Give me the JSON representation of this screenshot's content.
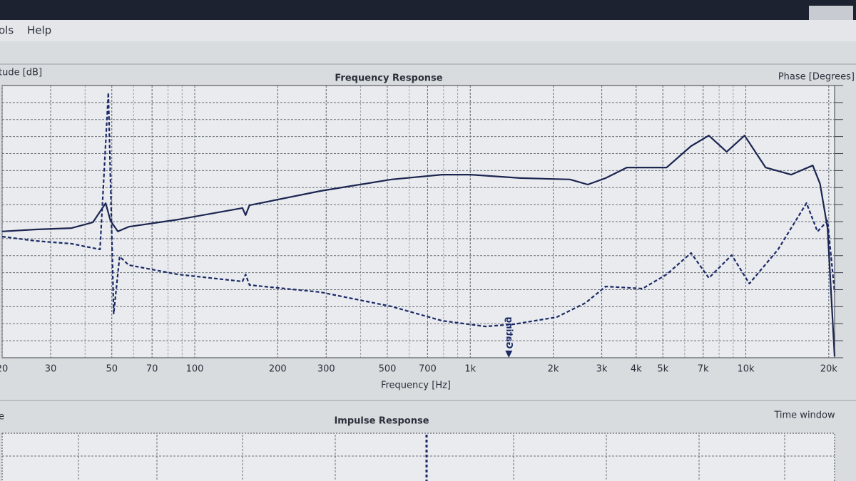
{
  "menu": [
    "ols",
    "Help"
  ],
  "chart_data": {
    "type": "line",
    "title": "Frequency Response",
    "ylabel": "tude [dB]",
    "y2label": "Phase [Degrees]",
    "xlabel": "Frequency [Hz]",
    "xscale": "log",
    "grid": true,
    "xlim": [
      20,
      21000
    ],
    "xticks": [
      20,
      30,
      50,
      70,
      100,
      200,
      300,
      500,
      700,
      {
        "value": 1000,
        "label": "1k"
      },
      {
        "value": 2000,
        "label": "2k"
      },
      {
        "value": 3000,
        "label": "3k"
      },
      {
        "value": 4000,
        "label": "4k"
      },
      {
        "value": 5000,
        "label": "5k"
      },
      {
        "value": 7000,
        "label": "7k"
      },
      {
        "value": 10000,
        "label": "10k"
      },
      {
        "value": 20000,
        "label": "20k"
      }
    ],
    "ylim": [
      -70,
      10
    ],
    "y2lim": [
      -180,
      180
    ],
    "series": [
      {
        "color": "#1b2550",
        "x": [
          20,
          26.5,
          35.7,
          42.7,
          47.5,
          49.5,
          52.6,
          57.6,
          87,
          149,
          153,
          158,
          286,
          518,
          790,
          1003,
          1520,
          2300,
          2670,
          3100,
          3700,
          5160,
          6330,
          7340,
          8520,
          9900,
          11800,
          14600,
          17500,
          18600,
          19800,
          21000
        ],
        "values": [
          -32.9,
          -32.3,
          -31.9,
          -30.2,
          -24.6,
          -29.8,
          -32.9,
          -31.5,
          -29.4,
          -26.0,
          -28.1,
          -25.2,
          -21.0,
          -17.6,
          -16.2,
          -16.2,
          -17.2,
          -17.6,
          -19.1,
          -17.2,
          -14.1,
          -14.1,
          -7.8,
          -4.7,
          -9.5,
          -4.7,
          -14.1,
          -16.2,
          -13.5,
          -18.9,
          -31.9,
          -69.6
        ]
      },
      {
        "color": "#1b2a66",
        "dash": true,
        "axis": "y2",
        "x": [
          20,
          26.5,
          35.7,
          45.3,
          48.6,
          50.8,
          53.4,
          57.6,
          87,
          149,
          153,
          158,
          286,
          518,
          790,
          1135,
          1440,
          2060,
          2620,
          3100,
          4220,
          5160,
          6330,
          7340,
          8890,
          10300,
          13100,
          16600,
          18200,
          19800,
          21000
        ],
        "values": [
          -19.8,
          -25.5,
          -29.2,
          -36.8,
          170.6,
          -121.6,
          -46.2,
          -57.5,
          -69.8,
          -79.2,
          -69.8,
          -83.9,
          -93.3,
          -112.2,
          -131.1,
          -138.6,
          -135.7,
          -126.3,
          -107.5,
          -85.8,
          -88.6,
          -69.8,
          -41.5,
          -74.5,
          -44.3,
          -82.0,
          -36.8,
          24.5,
          -13.2,
          1.1,
          -93.3
        ]
      }
    ],
    "markers": [
      {
        "label": "Gating",
        "x": 1380
      }
    ]
  },
  "impulse_panel": {
    "title": "Impulse Response",
    "left_label": "e",
    "right_label": "Time window"
  }
}
